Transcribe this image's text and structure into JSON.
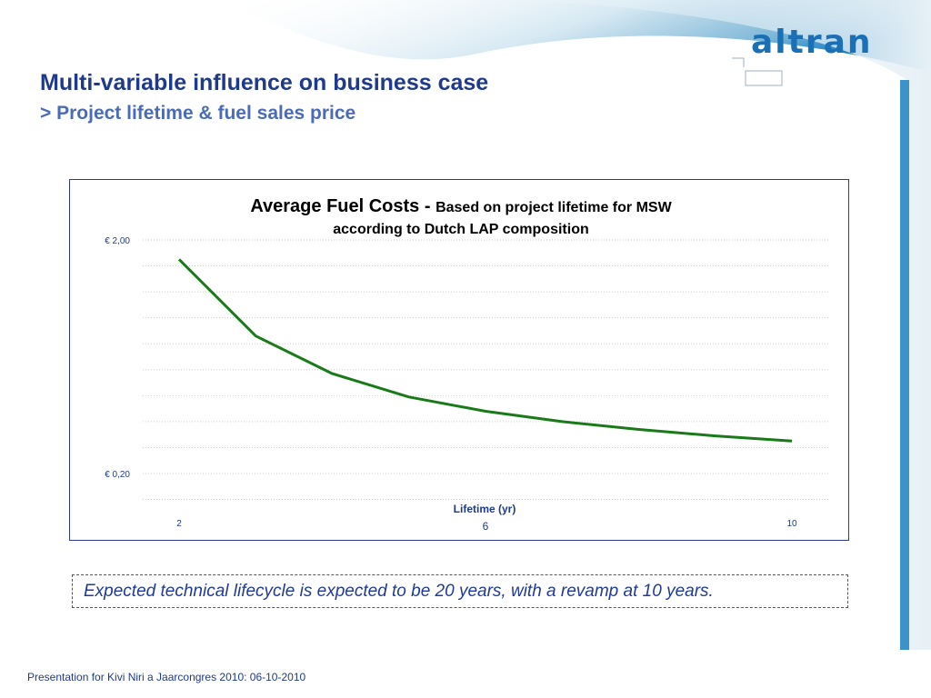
{
  "brand": {
    "logo_text": "altran"
  },
  "slide": {
    "title": "Multi-variable influence on business case",
    "subtitle": "> Project lifetime & fuel sales price",
    "note": "Expected technical lifecycle is expected to be 20 years, with a revamp at 10 years.",
    "footer": "Presentation for Kivi Niri a Jaarcongres 2010: 06-10-2010"
  },
  "colors": {
    "title": "#1f3a8a",
    "line": "#1a7a1a",
    "frame": "#2b3a8c"
  },
  "chart_data": {
    "type": "line",
    "title": "Average Fuel Costs - ",
    "title_detail_line1": "Based on project lifetime for MSW",
    "title_detail_line2": "according to Dutch LAP composition",
    "xlabel": "Lifetime (yr)",
    "ylabel": "",
    "x": [
      2,
      3,
      4,
      5,
      6,
      7,
      8,
      9,
      10
    ],
    "values": [
      1.85,
      1.26,
      0.97,
      0.79,
      0.68,
      0.6,
      0.54,
      0.49,
      0.45
    ],
    "ylim": [
      0.2,
      2.0
    ],
    "xlim": [
      2,
      10
    ],
    "y_tick_labels": [
      {
        "value": 2.0,
        "label": "€ 2,00"
      },
      {
        "value": 0.2,
        "label": "€  0,20"
      }
    ],
    "x_tick_labels": [
      {
        "value": 2,
        "label": "2"
      },
      {
        "value": 6,
        "label": "6"
      },
      {
        "value": 10,
        "label": "10"
      }
    ],
    "gridlines": true,
    "legend": "none"
  }
}
